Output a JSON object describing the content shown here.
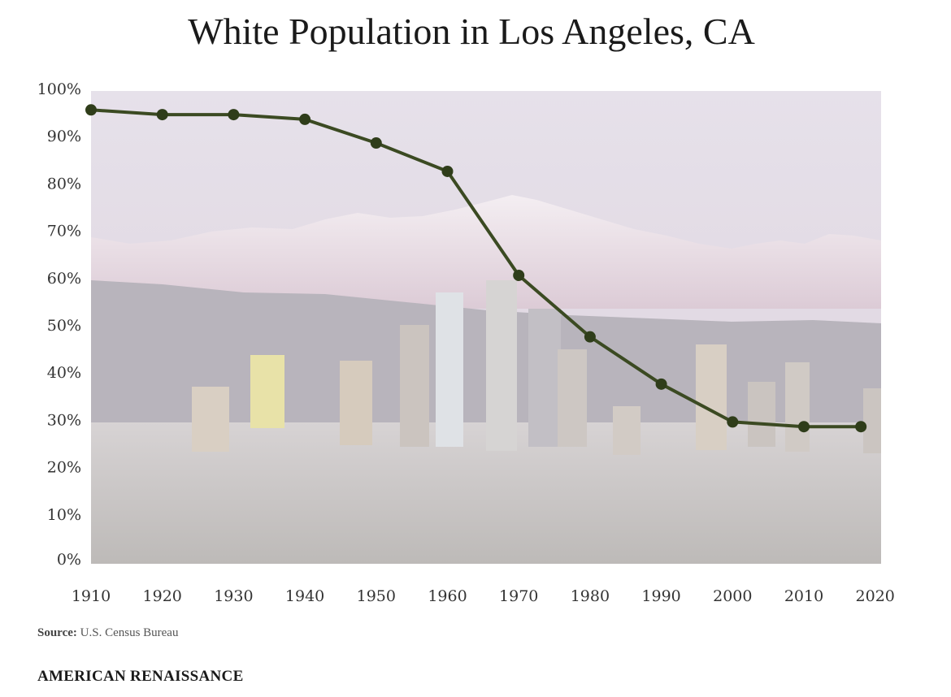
{
  "chart_data": {
    "type": "line",
    "title": "White Population in Los Angeles, CA",
    "xlabel": "",
    "ylabel": "",
    "x": [
      1910,
      1920,
      1930,
      1940,
      1950,
      1960,
      1970,
      1980,
      1990,
      2000,
      2010,
      2018
    ],
    "series": [
      {
        "values": [
          96,
          95,
          95,
          94,
          89,
          83,
          61,
          48,
          38,
          30,
          29,
          29
        ]
      }
    ],
    "ylim": [
      0,
      100
    ],
    "xlim": [
      1910,
      2020
    ],
    "yticks": [
      0,
      10,
      20,
      30,
      40,
      50,
      60,
      70,
      80,
      90,
      100
    ],
    "ytick_labels": [
      "0%",
      "10%",
      "20%",
      "30%",
      "40%",
      "50%",
      "60%",
      "70%",
      "80%",
      "90%",
      "100%"
    ],
    "xticks": [
      1910,
      1920,
      1930,
      1940,
      1950,
      1960,
      1970,
      1980,
      1990,
      2000,
      2010,
      2020
    ],
    "xtick_labels": [
      "1910",
      "1920",
      "1930",
      "1940",
      "1950",
      "1960",
      "1970",
      "1980",
      "1990",
      "2000",
      "2010",
      "2020"
    ],
    "grid": false,
    "line_color": "#3b4a22",
    "marker_color": "#2f3d1a"
  },
  "footer": {
    "source_label": "Source:",
    "source_text": "U.S. Census Bureau",
    "brand": "AMERICAN RENAISSANCE"
  }
}
